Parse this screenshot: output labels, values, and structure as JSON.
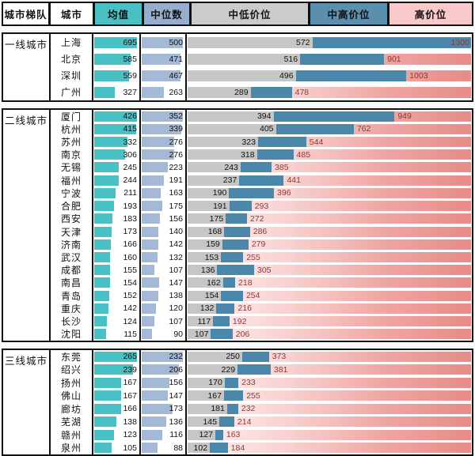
{
  "header": {
    "columns": [
      "城市梯队",
      "城市",
      "均值",
      "中位数",
      "中低价位",
      "中高价位",
      "高价位"
    ]
  },
  "colors": {
    "mean_bar": "#48c0c4",
    "median_bar": "#a4b9d6",
    "mid_low_bar": "#c6c6c6",
    "mid_high_bar": "#4a87aa",
    "high_gradient_start": "#fdf2f2",
    "high_gradient_end": "#e78b88",
    "price_label_text": "#8e3a36",
    "border": "#111111"
  },
  "chart_data": {
    "type": "bar",
    "title": "城市房价梯队:均值/中位数/价位区间",
    "columns": [
      "均值",
      "中位数",
      "中低价位",
      "中高价位",
      "高价位"
    ],
    "price_axis_max": 1300,
    "groups": [
      {
        "tier": "一线城市",
        "rows": [
          {
            "city": "上海",
            "mean": 695,
            "median": 500,
            "mid_low": 572,
            "mid_high": 1300
          },
          {
            "city": "北京",
            "mean": 585,
            "median": 471,
            "mid_low": 516,
            "mid_high": 901
          },
          {
            "city": "深圳",
            "mean": 559,
            "median": 467,
            "mid_low": 496,
            "mid_high": 1003
          },
          {
            "city": "广州",
            "mean": 327,
            "median": 263,
            "mid_low": 289,
            "mid_high": 478
          }
        ]
      },
      {
        "tier": "二线城市",
        "rows": [
          {
            "city": "厦门",
            "mean": 426,
            "median": 352,
            "mid_low": 394,
            "mid_high": 949
          },
          {
            "city": "杭州",
            "mean": 415,
            "median": 339,
            "mid_low": 405,
            "mid_high": 762
          },
          {
            "city": "苏州",
            "mean": 332,
            "median": 276,
            "mid_low": 323,
            "mid_high": 544
          },
          {
            "city": "南京",
            "mean": 306,
            "median": 276,
            "mid_low": 318,
            "mid_high": 485
          },
          {
            "city": "无锡",
            "mean": 245,
            "median": 223,
            "mid_low": 243,
            "mid_high": 385
          },
          {
            "city": "福州",
            "mean": 244,
            "median": 191,
            "mid_low": 237,
            "mid_high": 441
          },
          {
            "city": "宁波",
            "mean": 211,
            "median": 163,
            "mid_low": 190,
            "mid_high": 396
          },
          {
            "city": "合肥",
            "mean": 193,
            "median": 175,
            "mid_low": 191,
            "mid_high": 293
          },
          {
            "city": "西安",
            "mean": 183,
            "median": 156,
            "mid_low": 175,
            "mid_high": 272
          },
          {
            "city": "天津",
            "mean": 173,
            "median": 140,
            "mid_low": 168,
            "mid_high": 286
          },
          {
            "city": "济南",
            "mean": 166,
            "median": 142,
            "mid_low": 159,
            "mid_high": 279
          },
          {
            "city": "武汉",
            "mean": 160,
            "median": 132,
            "mid_low": 153,
            "mid_high": 255
          },
          {
            "city": "成都",
            "mean": 155,
            "median": 107,
            "mid_low": 136,
            "mid_high": 305
          },
          {
            "city": "南昌",
            "mean": 154,
            "median": 147,
            "mid_low": 162,
            "mid_high": 218
          },
          {
            "city": "青岛",
            "mean": 152,
            "median": 138,
            "mid_low": 154,
            "mid_high": 254
          },
          {
            "city": "重庆",
            "mean": 142,
            "median": 120,
            "mid_low": 132,
            "mid_high": 216
          },
          {
            "city": "长沙",
            "mean": 124,
            "median": 107,
            "mid_low": 117,
            "mid_high": 192
          },
          {
            "city": "沈阳",
            "mean": 115,
            "median": 90,
            "mid_low": 107,
            "mid_high": 206
          }
        ]
      },
      {
        "tier": "三线城市",
        "rows": [
          {
            "city": "东莞",
            "mean": 265,
            "median": 232,
            "mid_low": 250,
            "mid_high": 373
          },
          {
            "city": "绍兴",
            "mean": 239,
            "median": 206,
            "mid_low": 229,
            "mid_high": 381
          },
          {
            "city": "扬州",
            "mean": 167,
            "median": 156,
            "mid_low": 170,
            "mid_high": 233
          },
          {
            "city": "佛山",
            "mean": 167,
            "median": 147,
            "mid_low": 167,
            "mid_high": 255
          },
          {
            "city": "廊坊",
            "mean": 166,
            "median": 173,
            "mid_low": 181,
            "mid_high": 232
          },
          {
            "city": "芜湖",
            "mean": 138,
            "median": 136,
            "mid_low": 145,
            "mid_high": 214
          },
          {
            "city": "赣州",
            "mean": 123,
            "median": 116,
            "mid_low": 127,
            "mid_high": 163
          },
          {
            "city": "泉州",
            "mean": 105,
            "median": 88,
            "mid_low": 102,
            "mid_high": 184
          }
        ]
      }
    ]
  }
}
